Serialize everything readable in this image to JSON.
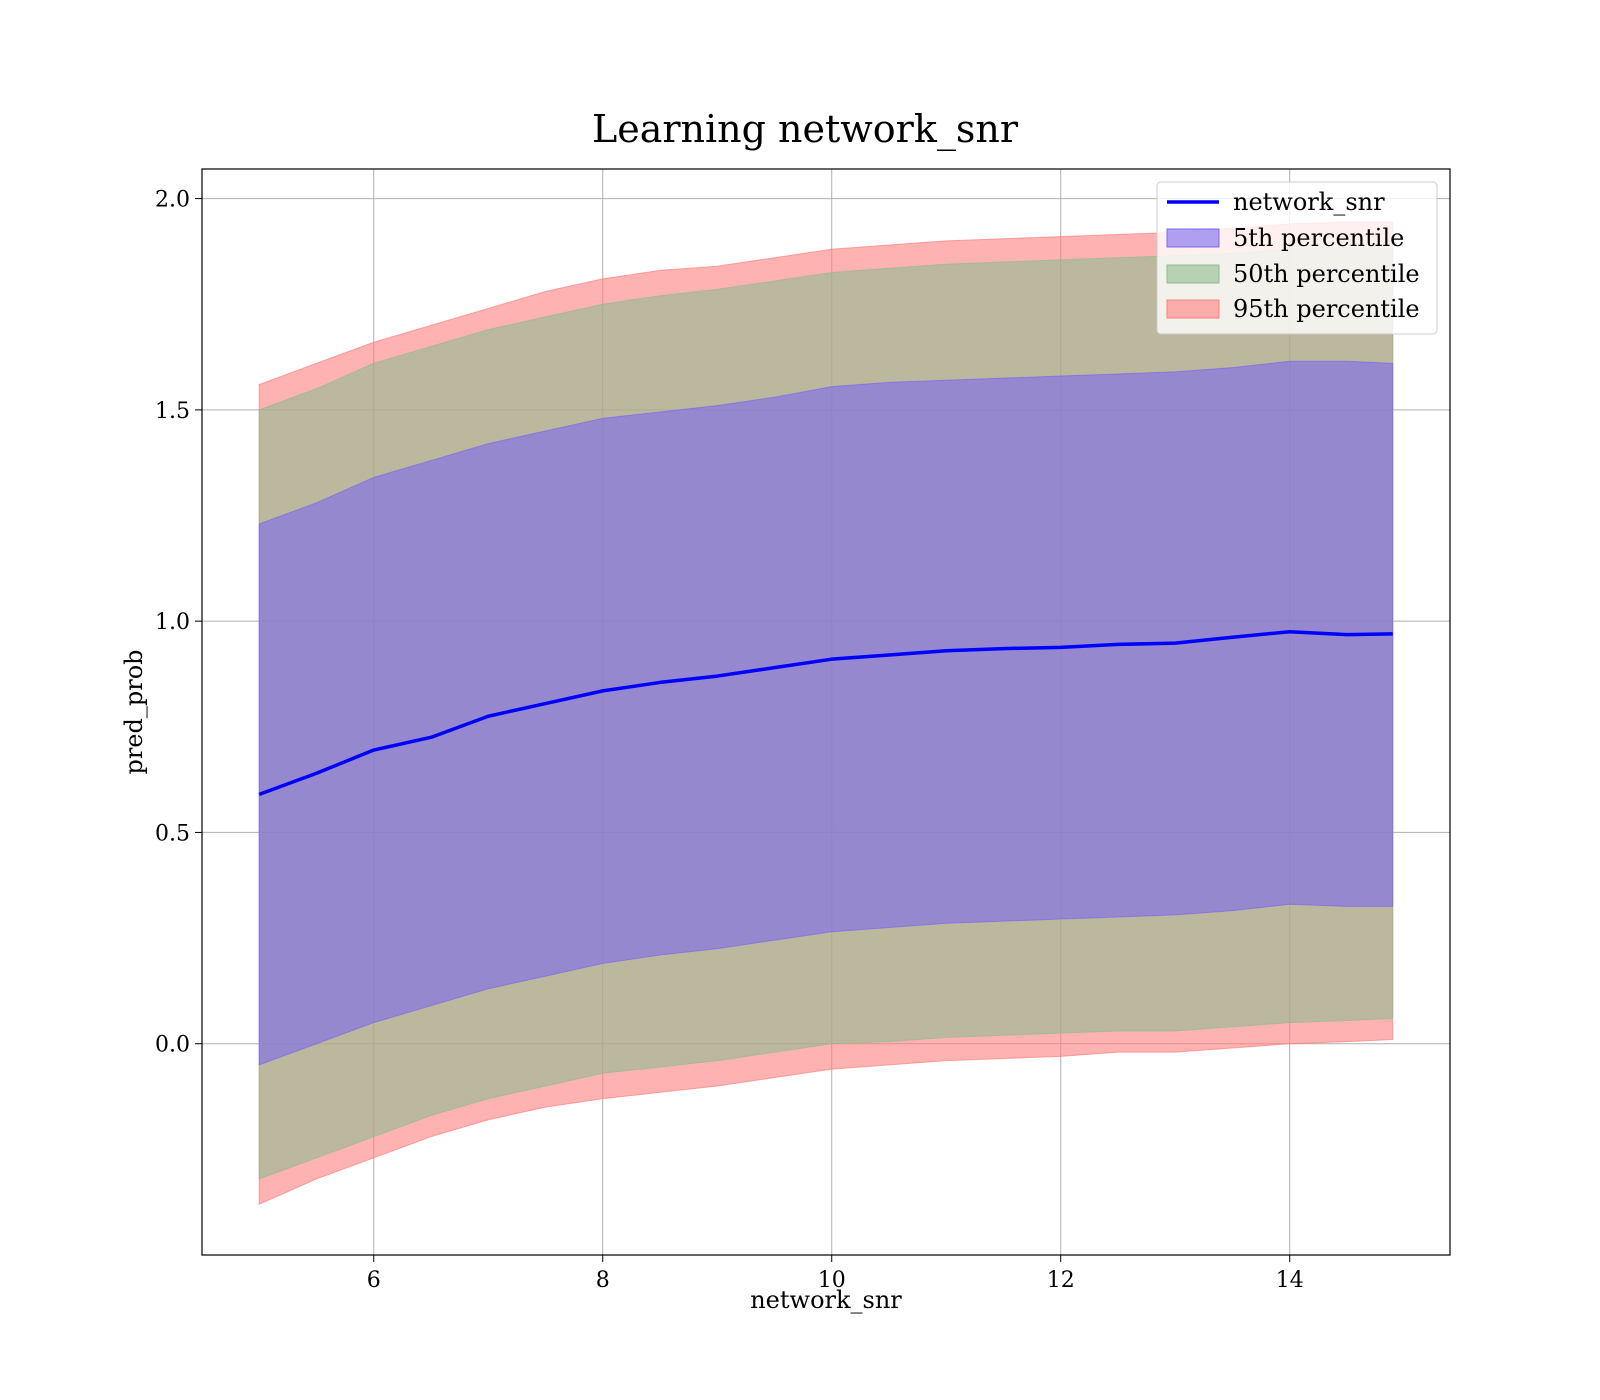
{
  "chart_data": {
    "type": "area",
    "title": "Learning network_snr",
    "xlabel": "network_snr",
    "ylabel": "pred_prob",
    "xlim": [
      4.5,
      15.4
    ],
    "ylim": [
      -0.5,
      2.07
    ],
    "xticks": [
      6,
      8,
      10,
      12,
      14
    ],
    "yticks": [
      0.0,
      0.5,
      1.0,
      1.5,
      2.0
    ],
    "xtick_labels": [
      "6",
      "8",
      "10",
      "12",
      "14"
    ],
    "ytick_labels": [
      "0.0",
      "0.5",
      "1.0",
      "1.5",
      "2.0"
    ],
    "grid": true,
    "legend_position": "top-right",
    "x": [
      5.0,
      5.5,
      6.0,
      6.5,
      7.0,
      7.5,
      8.0,
      8.5,
      9.0,
      9.5,
      10.0,
      10.5,
      11.0,
      11.5,
      12.0,
      12.5,
      13.0,
      13.5,
      14.0,
      14.5,
      14.9
    ],
    "line": {
      "name": "network_snr",
      "color": "#0000ff",
      "values": [
        0.59,
        0.64,
        0.695,
        0.725,
        0.775,
        0.805,
        0.835,
        0.855,
        0.87,
        0.89,
        0.91,
        0.92,
        0.93,
        0.935,
        0.938,
        0.945,
        0.948,
        0.962,
        0.975,
        0.968,
        0.97
      ]
    },
    "bands": [
      {
        "name": "95th percentile",
        "color": "#ff7f7f",
        "lower": [
          -0.38,
          -0.32,
          -0.27,
          -0.22,
          -0.18,
          -0.15,
          -0.13,
          -0.115,
          -0.1,
          -0.08,
          -0.06,
          -0.05,
          -0.04,
          -0.035,
          -0.03,
          -0.02,
          -0.02,
          -0.01,
          0.0,
          0.005,
          0.01
        ],
        "upper": [
          1.56,
          1.61,
          1.66,
          1.7,
          1.74,
          1.78,
          1.81,
          1.83,
          1.84,
          1.86,
          1.88,
          1.89,
          1.9,
          1.905,
          1.91,
          1.915,
          1.92,
          1.93,
          1.94,
          1.945,
          1.945
        ]
      },
      {
        "name": "50th percentile",
        "color": "#8fbc8f",
        "lower": [
          -0.32,
          -0.27,
          -0.22,
          -0.17,
          -0.13,
          -0.1,
          -0.07,
          -0.055,
          -0.04,
          -0.02,
          0.0,
          0.005,
          0.015,
          0.02,
          0.025,
          0.03,
          0.03,
          0.04,
          0.05,
          0.055,
          0.06
        ],
        "upper": [
          1.5,
          1.55,
          1.61,
          1.65,
          1.69,
          1.72,
          1.75,
          1.77,
          1.785,
          1.805,
          1.825,
          1.835,
          1.845,
          1.85,
          1.855,
          1.86,
          1.865,
          1.87,
          1.88,
          1.885,
          1.88
        ]
      },
      {
        "name": "5th percentile",
        "color": "#7b68ee",
        "lower": [
          -0.05,
          0.0,
          0.05,
          0.09,
          0.13,
          0.16,
          0.19,
          0.21,
          0.225,
          0.245,
          0.265,
          0.275,
          0.285,
          0.29,
          0.295,
          0.3,
          0.305,
          0.315,
          0.33,
          0.325,
          0.325
        ],
        "upper": [
          1.23,
          1.28,
          1.34,
          1.38,
          1.42,
          1.45,
          1.48,
          1.495,
          1.51,
          1.53,
          1.555,
          1.565,
          1.57,
          1.575,
          1.58,
          1.585,
          1.59,
          1.6,
          1.615,
          1.615,
          1.61
        ]
      }
    ],
    "legend": [
      "network_snr",
      "5th percentile",
      "50th percentile",
      "95th percentile"
    ]
  }
}
